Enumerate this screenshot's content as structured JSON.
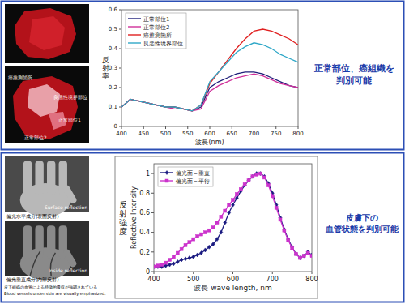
{
  "chart_data": [
    {
      "type": "line",
      "x_label": "波長(nm)",
      "y_label": "反射率",
      "x": [
        400,
        420,
        440,
        460,
        480,
        500,
        520,
        540,
        560,
        580,
        600,
        620,
        640,
        660,
        680,
        700,
        720,
        740,
        760,
        780,
        800
      ],
      "xlim": [
        400,
        800
      ],
      "xticks": [
        400,
        450,
        500,
        550,
        600,
        650,
        700,
        750,
        800
      ],
      "ylim": [
        0,
        0.6
      ],
      "yticks": [
        0,
        0.1,
        0.2,
        0.3,
        0.4,
        0.5,
        0.6
      ],
      "grid": false,
      "legend": "top-left",
      "series": [
        {
          "name": "正常部位1",
          "color": "#1f1f7a",
          "values": [
            0.1,
            0.14,
            0.13,
            0.12,
            0.11,
            0.1,
            0.1,
            0.09,
            0.08,
            0.1,
            0.2,
            0.23,
            0.25,
            0.27,
            0.28,
            0.28,
            0.27,
            0.25,
            0.23,
            0.21,
            0.2
          ]
        },
        {
          "name": "正常部位2",
          "color": "#d0309a",
          "values": [
            0.1,
            0.14,
            0.13,
            0.12,
            0.11,
            0.1,
            0.09,
            0.09,
            0.08,
            0.09,
            0.18,
            0.21,
            0.23,
            0.25,
            0.26,
            0.27,
            0.26,
            0.24,
            0.22,
            0.21,
            0.2
          ]
        },
        {
          "name": "癌推測箇所",
          "color": "#e02020",
          "values": [
            0.1,
            0.14,
            0.13,
            0.12,
            0.11,
            0.1,
            0.1,
            0.09,
            0.08,
            0.11,
            0.22,
            0.28,
            0.34,
            0.4,
            0.45,
            0.49,
            0.5,
            0.49,
            0.47,
            0.45,
            0.42
          ]
        },
        {
          "name": "良悪性境界部位",
          "color": "#30a8c8",
          "values": [
            0.1,
            0.14,
            0.13,
            0.12,
            0.11,
            0.1,
            0.1,
            0.09,
            0.08,
            0.11,
            0.23,
            0.28,
            0.33,
            0.38,
            0.41,
            0.43,
            0.42,
            0.4,
            0.37,
            0.35,
            0.33
          ]
        }
      ]
    },
    {
      "type": "line",
      "x_label": "波長 wave length, nm",
      "y_label": "反射強度",
      "y_label_en": "Reflective Intensity",
      "x": [
        400,
        410,
        420,
        430,
        440,
        450,
        460,
        470,
        480,
        490,
        500,
        510,
        520,
        530,
        540,
        550,
        560,
        570,
        580,
        590,
        600,
        610,
        620,
        630,
        640,
        650,
        660,
        670,
        680,
        690,
        700,
        710,
        720,
        730,
        740,
        750,
        760,
        770,
        780,
        790,
        800
      ],
      "xlim": [
        400,
        800
      ],
      "xticks": [
        400,
        500,
        600,
        700,
        800
      ],
      "ylim": [
        0,
        1.1
      ],
      "yticks": [
        0,
        0.2,
        0.4,
        0.6,
        0.8,
        1
      ],
      "grid": false,
      "legend": "top-left",
      "series": [
        {
          "name": "偏光面＝垂直",
          "color": "#1a1a80",
          "marker": "diamond",
          "values": [
            0.05,
            0.05,
            0.05,
            0.06,
            0.07,
            0.08,
            0.1,
            0.12,
            0.13,
            0.14,
            0.15,
            0.17,
            0.19,
            0.22,
            0.25,
            0.28,
            0.33,
            0.4,
            0.5,
            0.6,
            0.68,
            0.75,
            0.82,
            0.88,
            0.93,
            0.97,
            1.0,
            1.0,
            0.97,
            0.9,
            0.8,
            0.68,
            0.55,
            0.43,
            0.33,
            0.25,
            0.18,
            0.14,
            0.16,
            0.2,
            0.17
          ]
        },
        {
          "name": "偏光面＝平行",
          "color": "#cc33cc",
          "marker": "square",
          "values": [
            0.05,
            0.06,
            0.07,
            0.09,
            0.12,
            0.15,
            0.19,
            0.23,
            0.27,
            0.3,
            0.33,
            0.36,
            0.38,
            0.4,
            0.42,
            0.45,
            0.5,
            0.56,
            0.62,
            0.68,
            0.73,
            0.79,
            0.84,
            0.89,
            0.93,
            0.97,
            0.99,
            1.0,
            0.96,
            0.88,
            0.77,
            0.65,
            0.53,
            0.42,
            0.32,
            0.24,
            0.18,
            0.14,
            0.16,
            0.19,
            0.16
          ]
        }
      ]
    }
  ],
  "panels": [
    {
      "photo_labels": [
        "癌推測箇所",
        "良悪性境界部位",
        "正常部位1",
        "正常部位2"
      ],
      "conclusion": [
        "正常部位、癌組織を",
        "判別可能"
      ]
    },
    {
      "photo_captions": [
        "Surface reflection",
        "偏光水平成分(表面反射)",
        "Inside reflection",
        "偏光垂直成分(内部反射)",
        "皮下組織の血管による特徴的吸収が強調されている",
        "Blood vessels under skin are visually emphasized."
      ],
      "conclusion": [
        "皮膚下の",
        "血管状態を判別可能"
      ]
    }
  ]
}
